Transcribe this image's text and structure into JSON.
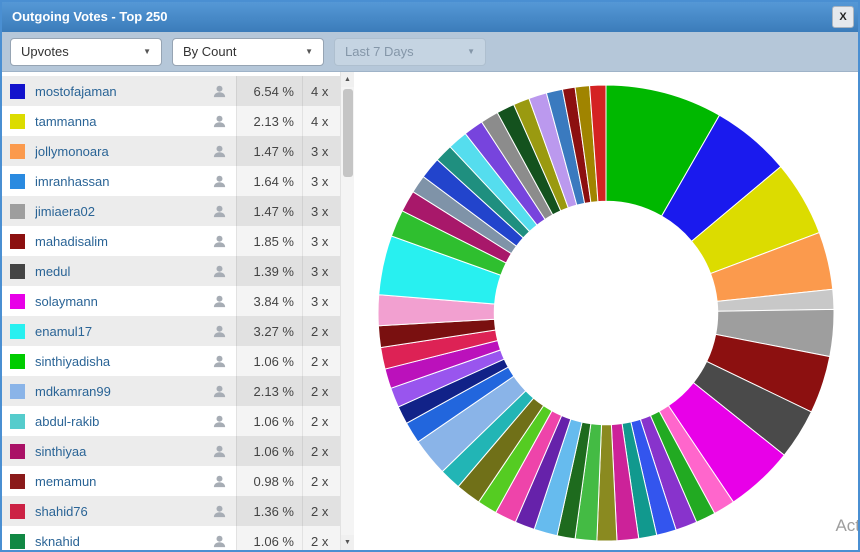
{
  "window": {
    "title": "Outgoing Votes - Top 250",
    "close_label": "X"
  },
  "colors": {
    "accent": "#3b7cba",
    "toolbar_bg": "#b5c7d9",
    "link": "#2a6496",
    "row_alt": "#ececec"
  },
  "icons": {
    "dropdown_caret": "▼",
    "caret_up": "▲",
    "caret_down": "▼",
    "user_icon": "user-silhouette"
  },
  "toolbar": {
    "filters": [
      {
        "name": "vote-type-select",
        "value": "Upvotes",
        "disabled": false
      },
      {
        "name": "sort-select",
        "value": "By Count",
        "disabled": false
      },
      {
        "name": "period-select",
        "value": "Last 7 Days",
        "disabled": true
      }
    ]
  },
  "list": {
    "rows": [
      {
        "color": "#1212cc",
        "username": "mostofajaman",
        "percent": "6.54 %",
        "count": "4 x"
      },
      {
        "color": "#dcdc00",
        "username": "tammanna",
        "percent": "2.13 %",
        "count": "4 x"
      },
      {
        "color": "#fb9a4d",
        "username": "jollymonoara",
        "percent": "1.47 %",
        "count": "3 x"
      },
      {
        "color": "#2a8ae0",
        "username": "imranhassan",
        "percent": "1.64 %",
        "count": "3 x"
      },
      {
        "color": "#9e9e9e",
        "username": "jimiaera02",
        "percent": "1.47 %",
        "count": "3 x"
      },
      {
        "color": "#8c1010",
        "username": "mahadisalim",
        "percent": "1.85 %",
        "count": "3 x"
      },
      {
        "color": "#444444",
        "username": "medul",
        "percent": "1.39 %",
        "count": "3 x"
      },
      {
        "color": "#e800e8",
        "username": "solaymann",
        "percent": "3.84 %",
        "count": "3 x"
      },
      {
        "color": "#28f0f0",
        "username": "enamul17",
        "percent": "3.27 %",
        "count": "2 x"
      },
      {
        "color": "#00cc00",
        "username": "sinthiyadisha",
        "percent": "1.06 %",
        "count": "2 x"
      },
      {
        "color": "#8ab4e8",
        "username": "mdkamran99",
        "percent": "2.13 %",
        "count": "2 x"
      },
      {
        "color": "#55cccc",
        "username": "abdul-rakib",
        "percent": "1.06 %",
        "count": "2 x"
      },
      {
        "color": "#aa1166",
        "username": "sinthiyaa",
        "percent": "1.06 %",
        "count": "2 x"
      },
      {
        "color": "#8b1a1a",
        "username": "memamun",
        "percent": "0.98 %",
        "count": "2 x"
      },
      {
        "color": "#cc2244",
        "username": "shahid76",
        "percent": "1.36 %",
        "count": "2 x"
      },
      {
        "color": "#118844",
        "username": "sknahid",
        "percent": "1.06 %",
        "count": "2 x"
      }
    ]
  },
  "chart_data": {
    "type": "donut",
    "title": "Outgoing Votes - Top 250",
    "legend_position": "left-list",
    "inner_radius_ratio": 0.49,
    "segments": [
      {
        "color": "#00b800",
        "value": 6.5
      },
      {
        "color": "#1a1aee",
        "value": 4.4
      },
      {
        "color": "#dcdc00",
        "value": 4.2
      },
      {
        "color": "#fb9a4d",
        "value": 3.2
      },
      {
        "color": "#c8c8c8",
        "value": 1.1
      },
      {
        "color": "#9e9e9e",
        "value": 2.6
      },
      {
        "color": "#8c1010",
        "value": 3.2
      },
      {
        "color": "#4a4a4a",
        "value": 2.8
      },
      {
        "color": "#e800e8",
        "value": 3.8
      },
      {
        "color": "#ff66cc",
        "value": 1.2
      },
      {
        "color": "#22aa22",
        "value": 1.1
      },
      {
        "color": "#8833cc",
        "value": 1.2
      },
      {
        "color": "#3355ee",
        "value": 1.1
      },
      {
        "color": "#11998e",
        "value": 1.0
      },
      {
        "color": "#cc2299",
        "value": 1.2
      },
      {
        "color": "#8a8a20",
        "value": 1.1
      },
      {
        "color": "#44bb44",
        "value": 1.2
      },
      {
        "color": "#1e6b1e",
        "value": 1.0
      },
      {
        "color": "#66bbee",
        "value": 1.3
      },
      {
        "color": "#6622aa",
        "value": 1.1
      },
      {
        "color": "#ee44aa",
        "value": 1.2
      },
      {
        "color": "#55cc22",
        "value": 1.1
      },
      {
        "color": "#707018",
        "value": 1.4
      },
      {
        "color": "#22b5b5",
        "value": 1.2
      },
      {
        "color": "#8ab4e8",
        "value": 2.1
      },
      {
        "color": "#2266dd",
        "value": 1.2
      },
      {
        "color": "#112288",
        "value": 1.0
      },
      {
        "color": "#9955ee",
        "value": 1.1
      },
      {
        "color": "#bb11bb",
        "value": 1.1
      },
      {
        "color": "#dd2255",
        "value": 1.2
      },
      {
        "color": "#7a1010",
        "value": 1.2
      },
      {
        "color": "#f2a0d0",
        "value": 1.7
      },
      {
        "color": "#28f0f0",
        "value": 3.3
      },
      {
        "color": "#2fbf2f",
        "value": 1.5
      },
      {
        "color": "#a8186a",
        "value": 1.2
      },
      {
        "color": "#7f93a8",
        "value": 1.0
      },
      {
        "color": "#2244cc",
        "value": 1.2
      },
      {
        "color": "#1f8f7f",
        "value": 1.0
      },
      {
        "color": "#55ddee",
        "value": 1.1
      },
      {
        "color": "#7744dd",
        "value": 1.1
      },
      {
        "color": "#8c8c8c",
        "value": 1.0
      },
      {
        "color": "#14521e",
        "value": 1.0
      },
      {
        "color": "#9a9a10",
        "value": 0.9
      },
      {
        "color": "#bb99ee",
        "value": 1.0
      },
      {
        "color": "#3a7abf",
        "value": 0.9
      },
      {
        "color": "#8c1010",
        "value": 0.7
      },
      {
        "color": "#a08400",
        "value": 0.8
      },
      {
        "color": "#d42222",
        "value": 0.9
      }
    ]
  },
  "watermark": "Act"
}
